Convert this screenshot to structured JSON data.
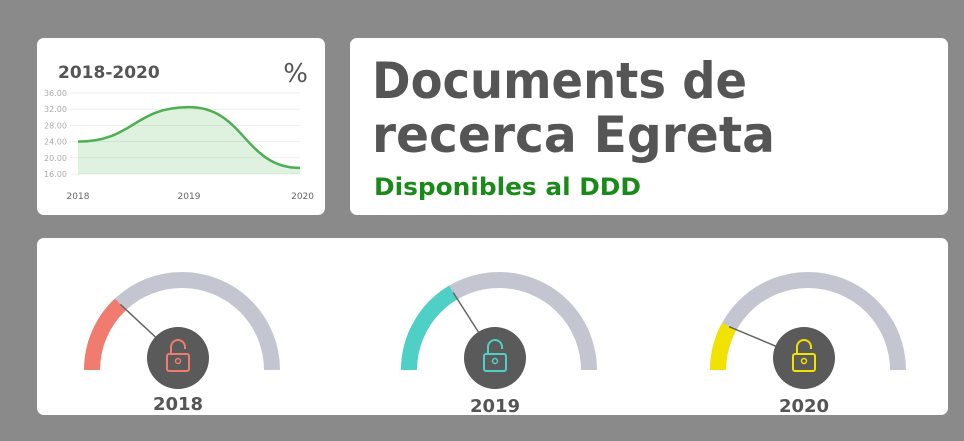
{
  "header": {
    "title_lines": [
      "Documents de",
      "recerca Egreta"
    ],
    "subtitle": "Disponibles al DDD"
  },
  "chart_data": [
    {
      "type": "area",
      "title": "2018-2020",
      "unit_label": "%",
      "categories": [
        "2018",
        "2019",
        "2020"
      ],
      "values": [
        24,
        32.5,
        17.5
      ],
      "color": "#4caf50",
      "ylim": [
        16,
        36
      ],
      "yticks": [
        {
          "value": 16,
          "label": "16.00"
        },
        {
          "value": 20,
          "label": "20.00"
        },
        {
          "value": 24,
          "label": "24.00"
        },
        {
          "value": 28,
          "label": "28.00"
        },
        {
          "value": 32,
          "label": "32.00"
        },
        {
          "value": 36,
          "label": "36.00"
        }
      ],
      "grid": true
    },
    {
      "type": "gauge",
      "categories": [
        "2018",
        "2019",
        "2020"
      ],
      "values": [
        26,
        33,
        16
      ],
      "colors": [
        "#f07b6e",
        "#4fd0c6",
        "#f2e200"
      ],
      "track_color": "#c3c6d0",
      "ylim": [
        0,
        100
      ]
    }
  ]
}
